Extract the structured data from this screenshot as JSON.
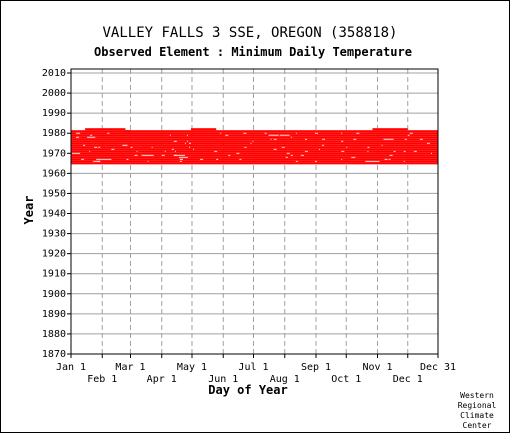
{
  "chart_data": {
    "type": "heatmap",
    "title": "VALLEY FALLS 3 SSE, OREGON   (358818)",
    "subtitle": "Observed Element : Minimum Daily Temperature",
    "xlabel": "Day of Year",
    "ylabel": "Year",
    "xlim": [
      1,
      365
    ],
    "ylim": [
      1870,
      2012
    ],
    "y_ticks": [
      1870,
      1880,
      1890,
      1900,
      1910,
      1920,
      1930,
      1940,
      1950,
      1960,
      1970,
      1980,
      1990,
      2000,
      2010
    ],
    "x_ticks_upper": [
      {
        "day": 1,
        "label": "Jan 1"
      },
      {
        "day": 60,
        "label": "Mar 1"
      },
      {
        "day": 121,
        "label": "May 1"
      },
      {
        "day": 182,
        "label": "Jul 1"
      },
      {
        "day": 244,
        "label": "Sep 1"
      },
      {
        "day": 305,
        "label": "Nov 1"
      },
      {
        "day": 365,
        "label": "Dec 31"
      }
    ],
    "x_ticks_lower": [
      {
        "day": 32,
        "label": "Feb 1"
      },
      {
        "day": 91,
        "label": "Apr 1"
      },
      {
        "day": 152,
        "label": "Jun 1"
      },
      {
        "day": 213,
        "label": "Aug 1"
      },
      {
        "day": 274,
        "label": "Oct 1"
      },
      {
        "day": 335,
        "label": "Dec 1"
      }
    ],
    "grid": true,
    "data_color": "#ff0000",
    "data_band_years": [
      1965,
      1981
    ],
    "extra_segments": [
      {
        "year": 1982,
        "start_day": 15,
        "end_day": 55
      },
      {
        "year": 1981,
        "start_day": 55,
        "end_day": 60
      },
      {
        "year": 1982,
        "start_day": 120,
        "end_day": 145
      },
      {
        "year": 1982,
        "start_day": 300,
        "end_day": 335
      }
    ]
  },
  "credit": [
    "Western",
    "Regional",
    "Climate",
    "Center"
  ]
}
